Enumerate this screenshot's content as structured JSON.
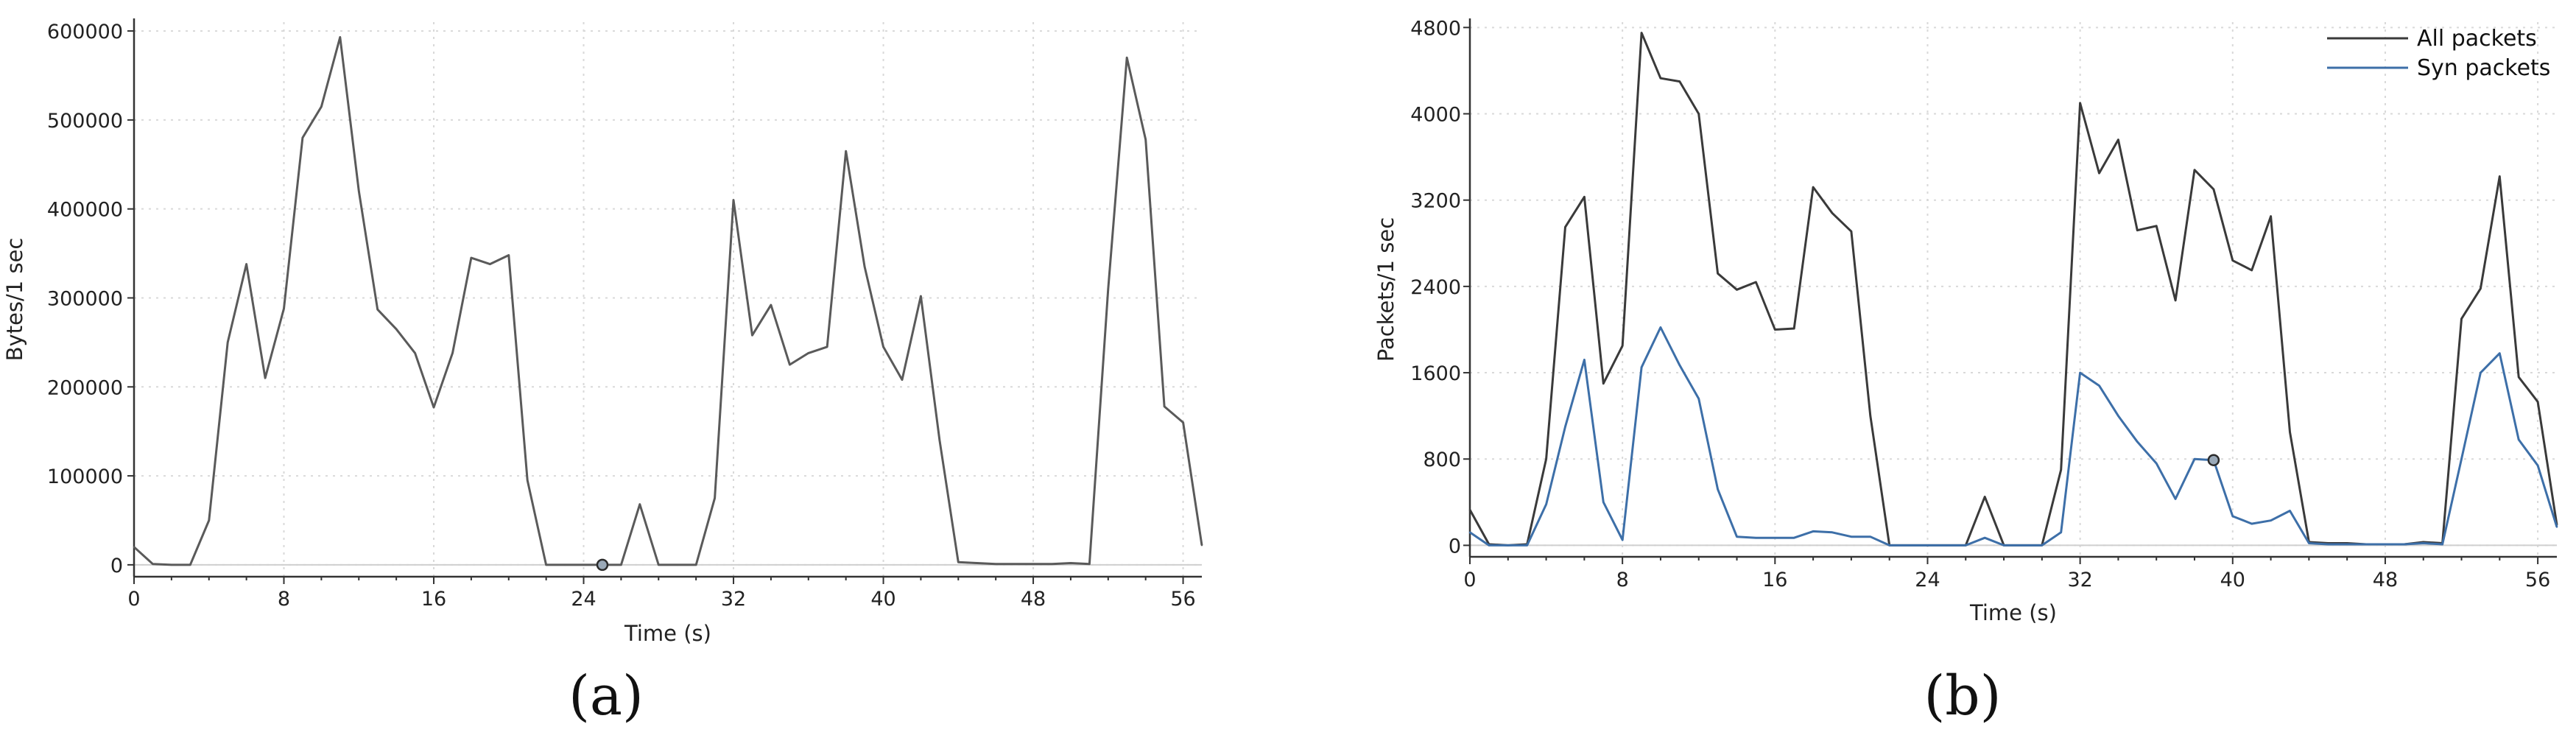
{
  "chart_data": [
    {
      "type": "line",
      "panel_label": "(a)",
      "title": "",
      "xlabel": "Time (s)",
      "ylabel": "Bytes/1 sec",
      "xlim": [
        0,
        57
      ],
      "ylim": [
        -15000,
        610000
      ],
      "xticks": [
        0,
        8,
        16,
        24,
        32,
        40,
        48,
        56
      ],
      "yticks": [
        0,
        100000,
        200000,
        300000,
        400000,
        500000,
        600000
      ],
      "grid": true,
      "marker_point": {
        "x": 25,
        "y": 0
      },
      "x": [
        0,
        1,
        2,
        3,
        4,
        5,
        6,
        7,
        8,
        9,
        10,
        11,
        12,
        13,
        14,
        15,
        16,
        17,
        18,
        19,
        20,
        21,
        22,
        23,
        24,
        25,
        26,
        27,
        28,
        29,
        30,
        31,
        32,
        33,
        34,
        35,
        36,
        37,
        38,
        39,
        40,
        41,
        42,
        43,
        44,
        45,
        46,
        47,
        48,
        49,
        50,
        51,
        52,
        53,
        54,
        55,
        56,
        57
      ],
      "series": [
        {
          "name": "",
          "color": "#5a5a5a",
          "values": [
            20000,
            1000,
            0,
            0,
            50000,
            250000,
            338000,
            210000,
            288000,
            480000,
            515000,
            593000,
            420000,
            287000,
            265000,
            238000,
            177000,
            238000,
            345000,
            338000,
            348000,
            95000,
            0,
            0,
            0,
            0,
            0,
            68000,
            0,
            0,
            0,
            75000,
            410000,
            258000,
            292000,
            225000,
            238000,
            245000,
            465000,
            335000,
            245000,
            208000,
            302000,
            140000,
            3000,
            2000,
            1000,
            1000,
            1000,
            1000,
            2000,
            1000,
            310000,
            570000,
            478000,
            178000,
            160000,
            22000
          ]
        }
      ]
    },
    {
      "type": "line",
      "panel_label": "(b)",
      "title": "",
      "xlabel": "Time (s)",
      "ylabel": "Packets/1 sec",
      "xlim": [
        0,
        57
      ],
      "ylim": [
        -120,
        4850
      ],
      "xticks": [
        0,
        8,
        16,
        24,
        32,
        40,
        48,
        56
      ],
      "yticks": [
        0,
        800,
        1600,
        2400,
        3200,
        4000,
        4800
      ],
      "grid": true,
      "legend": "top-right",
      "marker_point": {
        "x": 39,
        "y": 790
      },
      "x": [
        0,
        1,
        2,
        3,
        4,
        5,
        6,
        7,
        8,
        9,
        10,
        11,
        12,
        13,
        14,
        15,
        16,
        17,
        18,
        19,
        20,
        21,
        22,
        23,
        24,
        25,
        26,
        27,
        28,
        29,
        30,
        31,
        32,
        33,
        34,
        35,
        36,
        37,
        38,
        39,
        40,
        41,
        42,
        43,
        44,
        45,
        46,
        47,
        48,
        49,
        50,
        51,
        52,
        53,
        54,
        55,
        56,
        57
      ],
      "series": [
        {
          "name": "All packets",
          "color": "#3a3a3a",
          "values": [
            330,
            10,
            0,
            10,
            800,
            2950,
            3230,
            1500,
            1850,
            4750,
            4330,
            4300,
            4000,
            2520,
            2370,
            2440,
            2000,
            2010,
            3320,
            3080,
            2910,
            1200,
            0,
            0,
            0,
            0,
            0,
            450,
            0,
            0,
            0,
            700,
            4100,
            3450,
            3760,
            2920,
            2960,
            2270,
            3480,
            3300,
            2640,
            2550,
            3050,
            1050,
            30,
            20,
            20,
            10,
            10,
            10,
            30,
            20,
            2100,
            2380,
            3420,
            1560,
            1330,
            190
          ]
        },
        {
          "name": "Syn packets",
          "color": "#3d6fa8",
          "values": [
            120,
            0,
            0,
            0,
            380,
            1100,
            1720,
            400,
            50,
            1650,
            2020,
            1670,
            1360,
            520,
            80,
            70,
            70,
            70,
            130,
            120,
            80,
            80,
            0,
            0,
            0,
            0,
            0,
            70,
            0,
            0,
            0,
            120,
            1600,
            1480,
            1200,
            960,
            760,
            430,
            800,
            790,
            270,
            200,
            230,
            320,
            20,
            10,
            10,
            10,
            10,
            10,
            20,
            10,
            800,
            1600,
            1780,
            980,
            740,
            170
          ]
        }
      ]
    }
  ]
}
